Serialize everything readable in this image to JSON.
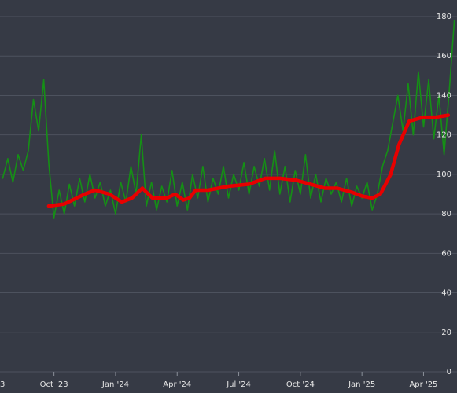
{
  "chart_data": {
    "type": "line",
    "xlim": [
      0.37,
      22.63
    ],
    "xticks": [
      {
        "value": 0,
        "label": "3"
      },
      {
        "value": 3,
        "label": "Oct '23"
      },
      {
        "value": 6,
        "label": "Jan '24"
      },
      {
        "value": 9,
        "label": "Apr '24"
      },
      {
        "value": 12,
        "label": "Jul '24"
      },
      {
        "value": 15,
        "label": "Oct '24"
      },
      {
        "value": 18,
        "label": "Jan '25"
      },
      {
        "value": 21,
        "label": "Apr '25"
      }
    ],
    "ylim": [
      0,
      180
    ],
    "yticks": [
      0,
      20,
      40,
      60,
      80,
      100,
      120,
      140,
      160,
      180
    ],
    "grid": true,
    "series": [
      {
        "color": "#159015",
        "width": 1.6,
        "x": [
          0.5,
          0.75,
          1,
          1.25,
          1.5,
          1.75,
          2,
          2.25,
          2.5,
          2.75,
          3,
          3.25,
          3.5,
          3.75,
          4,
          4.25,
          4.5,
          4.75,
          5,
          5.25,
          5.5,
          5.75,
          6,
          6.25,
          6.5,
          6.75,
          7,
          7.25,
          7.5,
          7.75,
          8,
          8.25,
          8.5,
          8.75,
          9,
          9.25,
          9.5,
          9.75,
          10,
          10.25,
          10.5,
          10.75,
          11,
          11.25,
          11.5,
          11.75,
          12,
          12.25,
          12.5,
          12.75,
          13,
          13.25,
          13.5,
          13.75,
          14,
          14.25,
          14.5,
          14.75,
          15,
          15.25,
          15.5,
          15.75,
          16,
          16.25,
          16.5,
          16.75,
          17,
          17.25,
          17.5,
          17.75,
          18,
          18.25,
          18.5,
          18.75,
          19,
          19.25,
          19.5,
          19.75,
          20,
          20.25,
          20.5,
          20.75,
          21,
          21.25,
          21.5,
          21.75,
          22,
          22.25,
          22.5
        ],
        "values": [
          98,
          108,
          96,
          110,
          102,
          112,
          138,
          122,
          148,
          105,
          78,
          92,
          80,
          95,
          84,
          98,
          86,
          100,
          88,
          96,
          84,
          92,
          80,
          96,
          86,
          104,
          90,
          120,
          84,
          96,
          82,
          94,
          86,
          102,
          84,
          96,
          82,
          100,
          88,
          104,
          86,
          98,
          90,
          104,
          88,
          100,
          92,
          106,
          90,
          104,
          94,
          108,
          92,
          112,
          90,
          104,
          86,
          102,
          90,
          110,
          88,
          100,
          86,
          98,
          90,
          96,
          86,
          98,
          84,
          94,
          88,
          96,
          82,
          90,
          104,
          112,
          126,
          140,
          122,
          146,
          120,
          152,
          124,
          148,
          118,
          140,
          110,
          142,
          178
        ]
      },
      {
        "color": "#e80000",
        "width": 4.5,
        "x": [
          2.74,
          3.5,
          4.5,
          5,
          5.7,
          6.3,
          6.8,
          7.3,
          7.8,
          8.5,
          8.9,
          9.3,
          9.6,
          9.9,
          10.5,
          11.5,
          12.5,
          13.3,
          14,
          14.8,
          15.5,
          16.2,
          16.8,
          17.5,
          18,
          18.5,
          18.9,
          19.4,
          19.8,
          20.3,
          21,
          21.6,
          22.2
        ],
        "values": [
          84,
          85,
          90,
          92,
          90,
          86,
          88,
          93,
          88,
          88,
          90,
          87,
          88,
          92,
          92,
          94,
          95,
          98,
          98,
          97,
          95,
          93,
          93,
          91,
          89,
          88,
          90,
          100,
          115,
          127,
          129,
          129,
          130
        ]
      }
    ]
  }
}
